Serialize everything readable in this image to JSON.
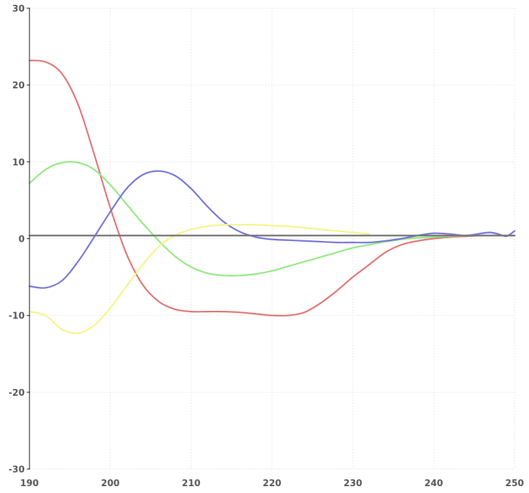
{
  "chart_data": {
    "type": "line",
    "title": "",
    "xlabel": "",
    "ylabel": "",
    "xlim": [
      190,
      250
    ],
    "ylim": [
      -30,
      30
    ],
    "x_ticks": [
      190,
      200,
      210,
      220,
      230,
      240,
      250
    ],
    "y_ticks": [
      30,
      20,
      10,
      0,
      -10,
      -20,
      -30
    ],
    "x_tick_labels": [
      "190",
      "200",
      "210",
      "220",
      "230",
      "240",
      "250"
    ],
    "y_tick_labels": [
      "30",
      "20",
      "10",
      "0",
      "-10",
      "-20",
      "-30"
    ],
    "grid": true,
    "legend": "none",
    "series": [
      {
        "color": "#e07070",
        "x": [
          190,
          192,
          194,
          196,
          198,
          200,
          202,
          204,
          206,
          208,
          210,
          212,
          214,
          216,
          218,
          220,
          222,
          224,
          226,
          228,
          230,
          232,
          234,
          236,
          238,
          240,
          242,
          244,
          246,
          248,
          250
        ],
        "y": [
          23.2,
          23.0,
          21.5,
          17.5,
          11.0,
          4.0,
          -2.0,
          -6.0,
          -8.2,
          -9.2,
          -9.5,
          -9.5,
          -9.5,
          -9.6,
          -9.8,
          -10.0,
          -10.0,
          -9.6,
          -8.4,
          -6.8,
          -5.0,
          -3.4,
          -1.8,
          -0.8,
          -0.3,
          0.0,
          0.2,
          0.3,
          0.4,
          0.4,
          0.4
        ]
      },
      {
        "color": "#90e880",
        "x": [
          190,
          192,
          194,
          196,
          198,
          200,
          202,
          204,
          206,
          208,
          210,
          212,
          214,
          216,
          218,
          220,
          222,
          224,
          226,
          228,
          230,
          232,
          234,
          236,
          238,
          240,
          242,
          244,
          246,
          248,
          250
        ],
        "y": [
          7.2,
          9.0,
          9.9,
          9.9,
          9.0,
          7.0,
          4.5,
          2.0,
          -0.3,
          -2.3,
          -3.7,
          -4.5,
          -4.8,
          -4.8,
          -4.6,
          -4.2,
          -3.6,
          -3.0,
          -2.4,
          -1.8,
          -1.2,
          -0.8,
          -0.4,
          -0.1,
          0.1,
          0.2,
          0.3,
          0.4,
          0.4,
          0.4,
          0.4
        ]
      },
      {
        "color": "#7070d8",
        "x": [
          190,
          192,
          194,
          196,
          198,
          200,
          202,
          204,
          206,
          208,
          210,
          212,
          214,
          216,
          218,
          220,
          222,
          224,
          226,
          228,
          230,
          232,
          234,
          236,
          238,
          240,
          242,
          244,
          246,
          247,
          248,
          249,
          250
        ],
        "y": [
          -6.2,
          -6.4,
          -5.5,
          -3.0,
          0.2,
          3.5,
          6.5,
          8.3,
          8.8,
          8.2,
          6.5,
          4.2,
          2.2,
          0.9,
          0.2,
          -0.1,
          -0.2,
          -0.3,
          -0.4,
          -0.5,
          -0.5,
          -0.5,
          -0.3,
          0.0,
          0.4,
          0.7,
          0.6,
          0.4,
          0.7,
          0.8,
          0.6,
          0.3,
          1.0
        ]
      },
      {
        "color": "#f4f488",
        "x": [
          190,
          192,
          194,
          196,
          198,
          200,
          202,
          204,
          206,
          208,
          210,
          212,
          214,
          216,
          218,
          220,
          222,
          224,
          226,
          228,
          230,
          232
        ],
        "y": [
          -9.5,
          -10.0,
          -11.8,
          -12.3,
          -11.3,
          -9.0,
          -6.2,
          -3.4,
          -1.0,
          0.4,
          1.2,
          1.6,
          1.8,
          1.8,
          1.8,
          1.7,
          1.6,
          1.4,
          1.2,
          1.0,
          0.8,
          0.6
        ]
      },
      {
        "color": "#777777",
        "x": [
          190,
          250
        ],
        "y": [
          0.4,
          0.4
        ]
      }
    ]
  }
}
